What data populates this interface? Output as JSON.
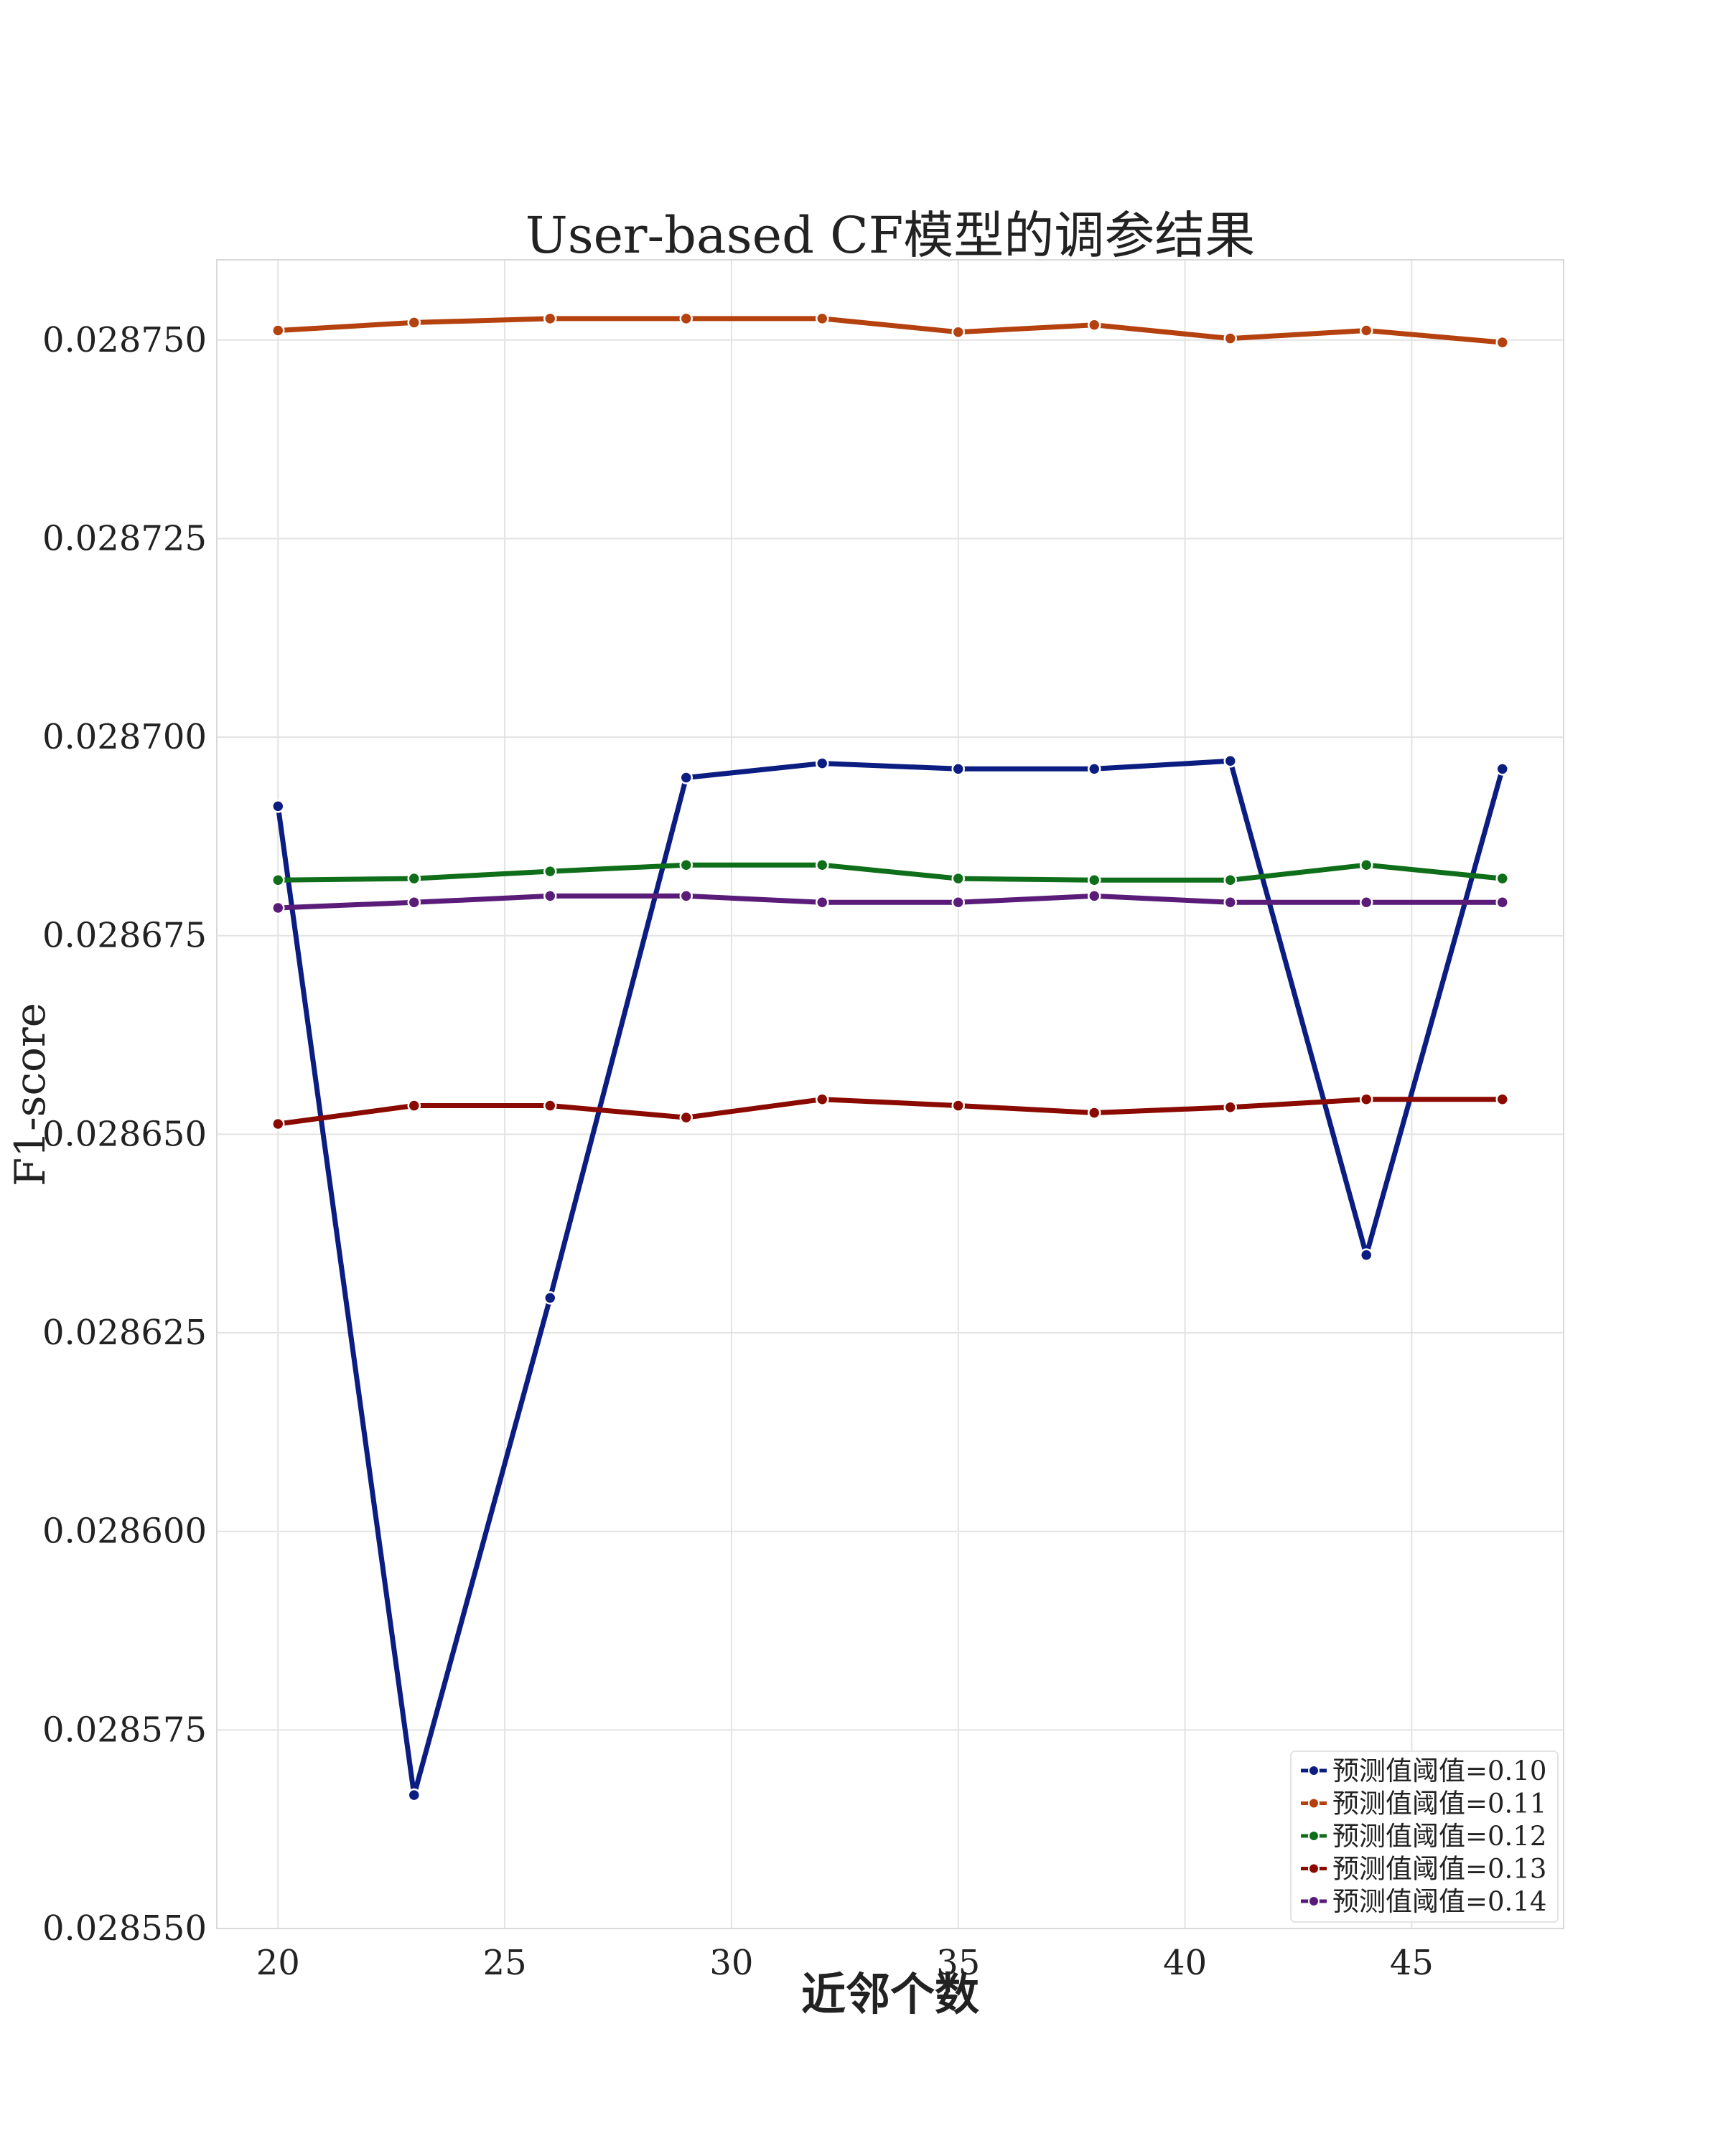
{
  "chart_data": {
    "type": "line",
    "title": "User-based CF模型的调参结果",
    "xlabel": "近邻个数",
    "ylabel": "F1-score",
    "xlim": [
      18.65,
      48.35
    ],
    "ylim": [
      0.02855,
      0.0287601
    ],
    "xticks": [
      20,
      25,
      30,
      35,
      40,
      45
    ],
    "yticks": [
      0.02855,
      0.028575,
      0.0286,
      0.028625,
      0.02865,
      0.028675,
      0.0287,
      0.028725,
      0.02875
    ],
    "ytick_labels": [
      "0.028550",
      "0.028575",
      "0.028600",
      "0.028625",
      "0.028650",
      "0.028675",
      "0.028700",
      "0.028725",
      "0.028750"
    ],
    "grid": true,
    "legend_position": "lower-right",
    "x": [
      20,
      23,
      26,
      29,
      32,
      35,
      38,
      41,
      44,
      47
    ],
    "series": [
      {
        "name": "预测值阈值=0.10",
        "color": "#0c1d82",
        "values": [
          0.0286913,
          0.0285668,
          0.0286294,
          0.0286949,
          0.0286967,
          0.028696,
          0.028696,
          0.028697,
          0.0286348,
          0.028696
        ]
      },
      {
        "name": "预测值阈值=0.11",
        "color": "#b5410f",
        "values": [
          0.0287512,
          0.0287522,
          0.0287527,
          0.0287527,
          0.0287527,
          0.028751,
          0.0287519,
          0.0287502,
          0.0287512,
          0.0287497
        ]
      },
      {
        "name": "预测值阈值=0.12",
        "color": "#0f6e19",
        "values": [
          0.028682,
          0.0286822,
          0.0286831,
          0.0286839,
          0.0286839,
          0.0286822,
          0.028682,
          0.028682,
          0.0286839,
          0.0286822
        ]
      },
      {
        "name": "预测值阈值=0.13",
        "color": "#8a0a00",
        "values": [
          0.0286513,
          0.0286536,
          0.0286536,
          0.0286521,
          0.0286544,
          0.0286536,
          0.0286527,
          0.0286534,
          0.0286544,
          0.0286544
        ]
      },
      {
        "name": "预测值阈值=0.14",
        "color": "#5a1c78",
        "values": [
          0.0286785,
          0.0286792,
          0.02868,
          0.02868,
          0.0286792,
          0.0286792,
          0.02868,
          0.0286792,
          0.0286792,
          0.0286792
        ]
      }
    ]
  }
}
